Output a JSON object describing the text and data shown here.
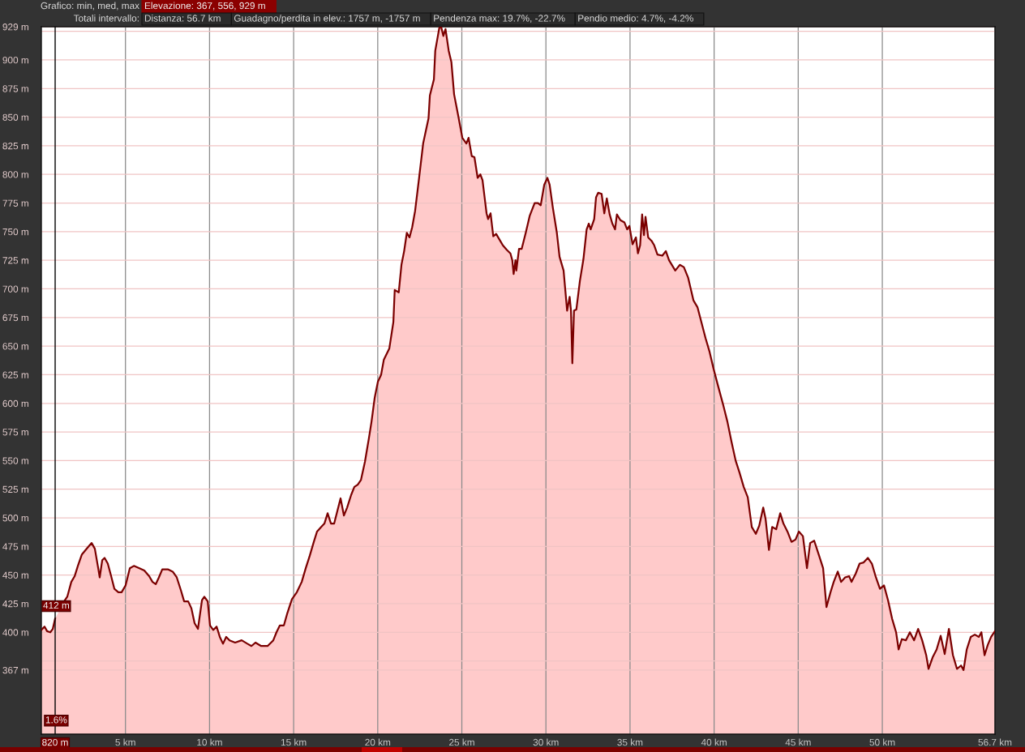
{
  "chart_data": {
    "type": "area",
    "x": [
      0,
      0.19,
      0.34,
      0.53,
      0.68,
      0.82,
      0.96,
      1.16,
      1.4,
      1.54,
      1.78,
      1.98,
      2.17,
      2.41,
      2.75,
      2.99,
      3.18,
      3.38,
      3.47,
      3.62,
      3.76,
      3.95,
      4.15,
      4.34,
      4.58,
      4.77,
      5.01,
      5.26,
      5.5,
      5.83,
      6.12,
      6.41,
      6.61,
      6.8,
      6.99,
      7.19,
      7.52,
      7.81,
      8.05,
      8.29,
      8.49,
      8.73,
      8.92,
      9.11,
      9.31,
      9.55,
      9.69,
      9.89,
      10.03,
      10.22,
      10.42,
      10.61,
      10.8,
      10.99,
      11.19,
      11.52,
      11.91,
      12.25,
      12.49,
      12.73,
      13.07,
      13.45,
      13.79,
      13.98,
      14.18,
      14.42,
      14.61,
      14.9,
      15.19,
      15.48,
      15.72,
      15.96,
      16.2,
      16.39,
      16.64,
      16.83,
      17.02,
      17.22,
      17.41,
      17.6,
      17.79,
      17.99,
      18.18,
      18.42,
      18.61,
      18.81,
      19.0,
      19.24,
      19.48,
      19.63,
      19.82,
      20.01,
      20.2,
      20.36,
      20.69,
      20.93,
      21.01,
      21.25,
      21.41,
      21.57,
      21.73,
      21.89,
      22.05,
      22.22,
      22.46,
      22.7,
      23.02,
      23.1,
      23.34,
      23.42,
      23.66,
      23.77,
      23.9,
      24.03,
      24.22,
      24.38,
      24.54,
      24.79,
      25.03,
      25.27,
      25.4,
      25.59,
      25.75,
      25.94,
      26.1,
      26.23,
      26.47,
      26.56,
      26.71,
      26.87,
      27.04,
      27.28,
      27.44,
      27.68,
      27.89,
      28.0,
      28.08,
      28.19,
      28.24,
      28.4,
      28.56,
      28.8,
      29.04,
      29.33,
      29.53,
      29.69,
      29.9,
      30.09,
      30.22,
      30.41,
      30.65,
      30.81,
      31.05,
      31.26,
      31.41,
      31.49,
      31.57,
      31.67,
      31.81,
      32.02,
      32.23,
      32.42,
      32.55,
      32.66,
      32.87,
      32.98,
      33.11,
      33.31,
      33.47,
      33.62,
      33.79,
      33.95,
      34.11,
      34.22,
      34.43,
      34.67,
      34.83,
      34.96,
      35.15,
      35.35,
      35.47,
      35.6,
      35.72,
      35.83,
      35.92,
      36.08,
      36.28,
      36.44,
      36.63,
      36.92,
      37.13,
      37.32,
      37.69,
      37.96,
      38.2,
      38.45,
      38.77,
      39.01,
      39.49,
      39.73,
      39.97,
      40.22,
      40.55,
      40.79,
      41.04,
      41.28,
      41.52,
      41.76,
      42.0,
      42.24,
      42.48,
      42.68,
      42.92,
      43.06,
      43.26,
      43.45,
      43.69,
      43.93,
      44.12,
      44.36,
      44.6,
      44.84,
      45.04,
      45.28,
      45.52,
      45.71,
      45.95,
      46.24,
      46.48,
      46.68,
      46.92,
      47.11,
      47.35,
      47.55,
      47.79,
      48.03,
      48.17,
      48.41,
      48.65,
      48.89,
      49.14,
      49.38,
      49.62,
      49.86,
      50.1,
      50.34,
      50.58,
      50.82,
      50.97,
      51.16,
      51.4,
      51.64,
      51.89,
      52.13,
      52.37,
      52.61,
      52.75,
      52.99,
      53.23,
      53.47,
      53.71,
      53.96,
      54.2,
      54.44,
      54.68,
      54.83,
      55.02,
      55.26,
      55.5,
      55.74,
      55.89,
      56.08,
      56.27,
      56.47,
      56.7
    ],
    "series": [
      {
        "color": "#7b0000",
        "values": [
          402,
          405,
          401,
          400,
          403,
          412,
          null,
          null,
          428,
          431,
          444,
          449,
          458,
          468,
          474,
          478,
          473,
          456,
          448,
          463,
          465,
          460,
          449,
          438,
          435,
          435,
          441,
          456,
          458,
          456,
          454,
          449,
          444,
          442,
          448,
          455,
          455,
          453,
          448,
          437,
          427,
          427,
          421,
          408,
          403,
          428,
          431,
          427,
          406,
          402,
          405,
          396,
          390,
          396,
          393,
          391,
          393,
          390,
          388,
          391,
          388,
          388,
          393,
          400,
          406,
          406,
          416,
          429,
          435,
          444,
          456,
          467,
          479,
          488,
          492,
          495,
          504,
          495,
          495,
          506,
          517,
          502,
          509,
          520,
          527,
          529,
          533,
          549,
          570,
          584,
          605,
          619,
          625,
          638,
          648,
          671,
          699,
          697,
          721,
          733,
          749,
          745,
          754,
          768,
          797,
          827,
          849,
          869,
          883,
          908,
          928,
          929,
          921,
          927,
          908,
          898,
          870,
          851,
          832,
          827,
          832,
          816,
          815,
          797,
          800,
          795,
          766,
          761,
          766,
          746,
          748,
          742,
          738,
          734,
          731,
          725,
          713,
          725,
          716,
          735,
          735,
          749,
          764,
          775,
          775,
          773,
          791,
          797,
          791,
          771,
          749,
          728,
          716,
          681,
          693,
          681,
          635,
          681,
          682,
          707,
          726,
          752,
          757,
          752,
          761,
          780,
          784,
          783,
          766,
          779,
          765,
          757,
          752,
          765,
          760,
          758,
          752,
          755,
          739,
          745,
          731,
          738,
          765,
          747,
          763,
          745,
          742,
          738,
          730,
          729,
          733,
          725,
          716,
          721,
          719,
          710,
          690,
          684,
          657,
          645,
          630,
          616,
          598,
          584,
          566,
          550,
          539,
          527,
          518,
          492,
          486,
          493,
          509,
          499,
          472,
          492,
          490,
          504,
          495,
          488,
          479,
          481,
          488,
          484,
          456,
          478,
          480,
          467,
          456,
          422,
          435,
          444,
          453,
          444,
          448,
          449,
          444,
          451,
          460,
          461,
          465,
          460,
          448,
          438,
          441,
          428,
          412,
          400,
          385,
          394,
          393,
          400,
          393,
          403,
          393,
          380,
          368,
          378,
          385,
          397,
          381,
          403,
          380,
          368,
          371,
          367,
          385,
          396,
          398,
          396,
          400,
          380,
          389,
          396,
          401
        ]
      }
    ],
    "xlim": [
      0,
      56.7
    ],
    "ylim": [
      311,
      929
    ],
    "xticks": [
      {
        "value": 5,
        "label": "5 km"
      },
      {
        "value": 10,
        "label": "10 km"
      },
      {
        "value": 15,
        "label": "15 km"
      },
      {
        "value": 20,
        "label": "20 km"
      },
      {
        "value": 25,
        "label": "25 km"
      },
      {
        "value": 30,
        "label": "30 km"
      },
      {
        "value": 35,
        "label": "35 km"
      },
      {
        "value": 40,
        "label": "40 km"
      },
      {
        "value": 45,
        "label": "45 km"
      },
      {
        "value": 50,
        "label": "50 km"
      },
      {
        "value": 56.7,
        "label": "56.7 km"
      }
    ],
    "yticks": [
      {
        "value": 367,
        "label": "367 m"
      },
      {
        "value": 375,
        "label": null
      },
      {
        "value": 400,
        "label": "400 m"
      },
      {
        "value": 425,
        "label": "425 m"
      },
      {
        "value": 450,
        "label": "450 m"
      },
      {
        "value": 475,
        "label": "475 m"
      },
      {
        "value": 500,
        "label": "500 m"
      },
      {
        "value": 525,
        "label": "525 m"
      },
      {
        "value": 550,
        "label": "550 m"
      },
      {
        "value": 575,
        "label": "575 m"
      },
      {
        "value": 600,
        "label": "600 m"
      },
      {
        "value": 625,
        "label": "625 m"
      },
      {
        "value": 650,
        "label": "650 m"
      },
      {
        "value": 675,
        "label": "675 m"
      },
      {
        "value": 700,
        "label": "700 m"
      },
      {
        "value": 725,
        "label": "725 m"
      },
      {
        "value": 750,
        "label": "750 m"
      },
      {
        "value": 775,
        "label": "775 m"
      },
      {
        "value": 800,
        "label": "800 m"
      },
      {
        "value": 825,
        "label": "825 m"
      },
      {
        "value": 850,
        "label": "850 m"
      },
      {
        "value": 875,
        "label": "875 m"
      },
      {
        "value": 900,
        "label": "900 m"
      },
      {
        "value": 925,
        "label": null
      },
      {
        "value": 929,
        "label": "929 m"
      }
    ],
    "grid": true,
    "ref_lines": [
      {
        "axis": "x",
        "value": 0.82,
        "label": "820 m",
        "color": "#000000"
      }
    ],
    "annotations": [
      "Grafico: min, med, max",
      "Elevazione: 367, 556, 929 m",
      "Totali intervallo:",
      "Distanza: 56.7 km",
      "Guadagno/perdita in elev.: 1757 m, -1757 m",
      "Pendenza max: 19.7%, -22.7%",
      "Pendio medio: 4.7%, -4.2%",
      {
        "text": "412 m",
        "x": 0.82,
        "y": 412
      },
      "1.6%"
    ]
  }
}
